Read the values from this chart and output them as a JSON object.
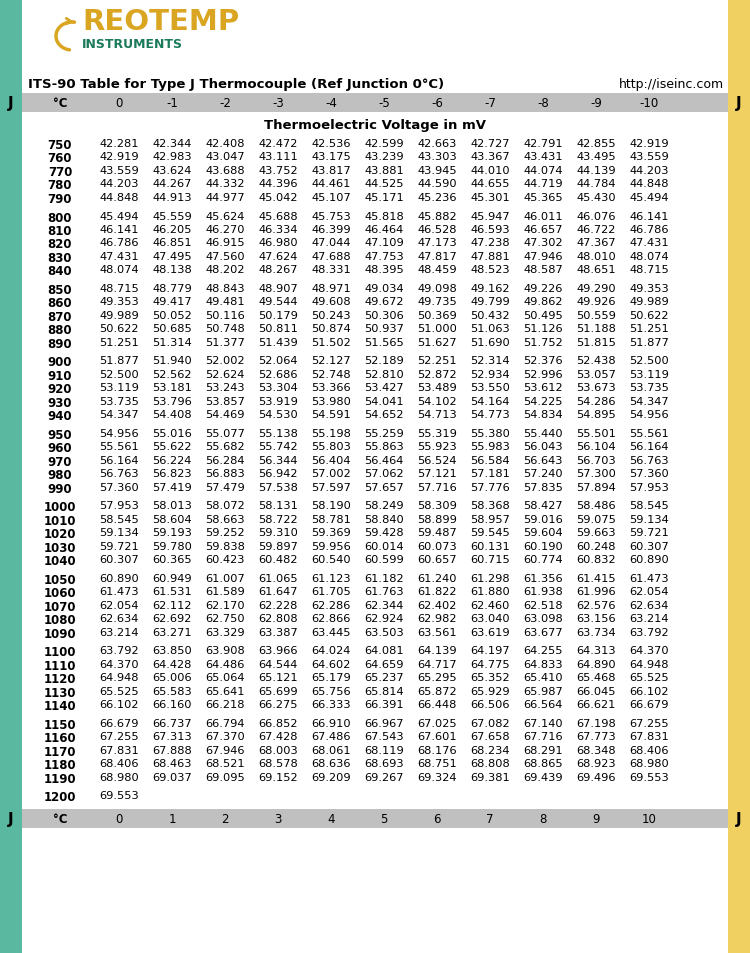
{
  "title_left": "ITS-90 Table for Type J Thermocouple (Ref Junction 0°C)",
  "title_right": "http://iseinc.com",
  "subtitle": "Thermoelectric Voltage in mV",
  "header_top": [
    "°C",
    "0",
    "-1",
    "-2",
    "-3",
    "-4",
    "-5",
    "-6",
    "-7",
    "-8",
    "-9",
    "-10"
  ],
  "header_bottom": [
    "°C",
    "0",
    "1",
    "2",
    "3",
    "4",
    "5",
    "6",
    "7",
    "8",
    "9",
    "10"
  ],
  "left_sidebar_color": "#5bb8a0",
  "right_sidebar_color": "#f0d060",
  "header_bg_color": "#c0c0c0",
  "logo_reotemp_color": "#DAA520",
  "logo_instruments_color": "#1a7a5a",
  "table_data": [
    [
      750,
      42.281,
      42.344,
      42.408,
      42.472,
      42.536,
      42.599,
      42.663,
      42.727,
      42.791,
      42.855,
      42.919
    ],
    [
      760,
      42.919,
      42.983,
      43.047,
      43.111,
      43.175,
      43.239,
      43.303,
      43.367,
      43.431,
      43.495,
      43.559
    ],
    [
      770,
      43.559,
      43.624,
      43.688,
      43.752,
      43.817,
      43.881,
      43.945,
      44.01,
      44.074,
      44.139,
      44.203
    ],
    [
      780,
      44.203,
      44.267,
      44.332,
      44.396,
      44.461,
      44.525,
      44.59,
      44.655,
      44.719,
      44.784,
      44.848
    ],
    [
      790,
      44.848,
      44.913,
      44.977,
      45.042,
      45.107,
      45.171,
      45.236,
      45.301,
      45.365,
      45.43,
      45.494
    ],
    [
      null,
      null,
      null,
      null,
      null,
      null,
      null,
      null,
      null,
      null,
      null,
      null
    ],
    [
      800,
      45.494,
      45.559,
      45.624,
      45.688,
      45.753,
      45.818,
      45.882,
      45.947,
      46.011,
      46.076,
      46.141
    ],
    [
      810,
      46.141,
      46.205,
      46.27,
      46.334,
      46.399,
      46.464,
      46.528,
      46.593,
      46.657,
      46.722,
      46.786
    ],
    [
      820,
      46.786,
      46.851,
      46.915,
      46.98,
      47.044,
      47.109,
      47.173,
      47.238,
      47.302,
      47.367,
      47.431
    ],
    [
      830,
      47.431,
      47.495,
      47.56,
      47.624,
      47.688,
      47.753,
      47.817,
      47.881,
      47.946,
      48.01,
      48.074
    ],
    [
      840,
      48.074,
      48.138,
      48.202,
      48.267,
      48.331,
      48.395,
      48.459,
      48.523,
      48.587,
      48.651,
      48.715
    ],
    [
      null,
      null,
      null,
      null,
      null,
      null,
      null,
      null,
      null,
      null,
      null,
      null
    ],
    [
      850,
      48.715,
      48.779,
      48.843,
      48.907,
      48.971,
      49.034,
      49.098,
      49.162,
      49.226,
      49.29,
      49.353
    ],
    [
      860,
      49.353,
      49.417,
      49.481,
      49.544,
      49.608,
      49.672,
      49.735,
      49.799,
      49.862,
      49.926,
      49.989
    ],
    [
      870,
      49.989,
      50.052,
      50.116,
      50.179,
      50.243,
      50.306,
      50.369,
      50.432,
      50.495,
      50.559,
      50.622
    ],
    [
      880,
      50.622,
      50.685,
      50.748,
      50.811,
      50.874,
      50.937,
      51.0,
      51.063,
      51.126,
      51.188,
      51.251
    ],
    [
      890,
      51.251,
      51.314,
      51.377,
      51.439,
      51.502,
      51.565,
      51.627,
      51.69,
      51.752,
      51.815,
      51.877
    ],
    [
      null,
      null,
      null,
      null,
      null,
      null,
      null,
      null,
      null,
      null,
      null,
      null
    ],
    [
      900,
      51.877,
      51.94,
      52.002,
      52.064,
      52.127,
      52.189,
      52.251,
      52.314,
      52.376,
      52.438,
      52.5
    ],
    [
      910,
      52.5,
      52.562,
      52.624,
      52.686,
      52.748,
      52.81,
      52.872,
      52.934,
      52.996,
      53.057,
      53.119
    ],
    [
      920,
      53.119,
      53.181,
      53.243,
      53.304,
      53.366,
      53.427,
      53.489,
      53.55,
      53.612,
      53.673,
      53.735
    ],
    [
      930,
      53.735,
      53.796,
      53.857,
      53.919,
      53.98,
      54.041,
      54.102,
      54.164,
      54.225,
      54.286,
      54.347
    ],
    [
      940,
      54.347,
      54.408,
      54.469,
      54.53,
      54.591,
      54.652,
      54.713,
      54.773,
      54.834,
      54.895,
      54.956
    ],
    [
      null,
      null,
      null,
      null,
      null,
      null,
      null,
      null,
      null,
      null,
      null,
      null
    ],
    [
      950,
      54.956,
      55.016,
      55.077,
      55.138,
      55.198,
      55.259,
      55.319,
      55.38,
      55.44,
      55.501,
      55.561
    ],
    [
      960,
      55.561,
      55.622,
      55.682,
      55.742,
      55.803,
      55.863,
      55.923,
      55.983,
      56.043,
      56.104,
      56.164
    ],
    [
      970,
      56.164,
      56.224,
      56.284,
      56.344,
      56.404,
      56.464,
      56.524,
      56.584,
      56.643,
      56.703,
      56.763
    ],
    [
      980,
      56.763,
      56.823,
      56.883,
      56.942,
      57.002,
      57.062,
      57.121,
      57.181,
      57.24,
      57.3,
      57.36
    ],
    [
      990,
      57.36,
      57.419,
      57.479,
      57.538,
      57.597,
      57.657,
      57.716,
      57.776,
      57.835,
      57.894,
      57.953
    ],
    [
      null,
      null,
      null,
      null,
      null,
      null,
      null,
      null,
      null,
      null,
      null,
      null
    ],
    [
      1000,
      57.953,
      58.013,
      58.072,
      58.131,
      58.19,
      58.249,
      58.309,
      58.368,
      58.427,
      58.486,
      58.545
    ],
    [
      1010,
      58.545,
      58.604,
      58.663,
      58.722,
      58.781,
      58.84,
      58.899,
      58.957,
      59.016,
      59.075,
      59.134
    ],
    [
      1020,
      59.134,
      59.193,
      59.252,
      59.31,
      59.369,
      59.428,
      59.487,
      59.545,
      59.604,
      59.663,
      59.721
    ],
    [
      1030,
      59.721,
      59.78,
      59.838,
      59.897,
      59.956,
      60.014,
      60.073,
      60.131,
      60.19,
      60.248,
      60.307
    ],
    [
      1040,
      60.307,
      60.365,
      60.423,
      60.482,
      60.54,
      60.599,
      60.657,
      60.715,
      60.774,
      60.832,
      60.89
    ],
    [
      null,
      null,
      null,
      null,
      null,
      null,
      null,
      null,
      null,
      null,
      null,
      null
    ],
    [
      1050,
      60.89,
      60.949,
      61.007,
      61.065,
      61.123,
      61.182,
      61.24,
      61.298,
      61.356,
      61.415,
      61.473
    ],
    [
      1060,
      61.473,
      61.531,
      61.589,
      61.647,
      61.705,
      61.763,
      61.822,
      61.88,
      61.938,
      61.996,
      62.054
    ],
    [
      1070,
      62.054,
      62.112,
      62.17,
      62.228,
      62.286,
      62.344,
      62.402,
      62.46,
      62.518,
      62.576,
      62.634
    ],
    [
      1080,
      62.634,
      62.692,
      62.75,
      62.808,
      62.866,
      62.924,
      62.982,
      63.04,
      63.098,
      63.156,
      63.214
    ],
    [
      1090,
      63.214,
      63.271,
      63.329,
      63.387,
      63.445,
      63.503,
      63.561,
      63.619,
      63.677,
      63.734,
      63.792
    ],
    [
      null,
      null,
      null,
      null,
      null,
      null,
      null,
      null,
      null,
      null,
      null,
      null
    ],
    [
      1100,
      63.792,
      63.85,
      63.908,
      63.966,
      64.024,
      64.081,
      64.139,
      64.197,
      64.255,
      64.313,
      64.37
    ],
    [
      1110,
      64.37,
      64.428,
      64.486,
      64.544,
      64.602,
      64.659,
      64.717,
      64.775,
      64.833,
      64.89,
      64.948
    ],
    [
      1120,
      64.948,
      65.006,
      65.064,
      65.121,
      65.179,
      65.237,
      65.295,
      65.352,
      65.41,
      65.468,
      65.525
    ],
    [
      1130,
      65.525,
      65.583,
      65.641,
      65.699,
      65.756,
      65.814,
      65.872,
      65.929,
      65.987,
      66.045,
      66.102
    ],
    [
      1140,
      66.102,
      66.16,
      66.218,
      66.275,
      66.333,
      66.391,
      66.448,
      66.506,
      66.564,
      66.621,
      66.679
    ],
    [
      null,
      null,
      null,
      null,
      null,
      null,
      null,
      null,
      null,
      null,
      null,
      null
    ],
    [
      1150,
      66.679,
      66.737,
      66.794,
      66.852,
      66.91,
      66.967,
      67.025,
      67.082,
      67.14,
      67.198,
      67.255
    ],
    [
      1160,
      67.255,
      67.313,
      67.37,
      67.428,
      67.486,
      67.543,
      67.601,
      67.658,
      67.716,
      67.773,
      67.831
    ],
    [
      1170,
      67.831,
      67.888,
      67.946,
      68.003,
      68.061,
      68.119,
      68.176,
      68.234,
      68.291,
      68.348,
      68.406
    ],
    [
      1180,
      68.406,
      68.463,
      68.521,
      68.578,
      68.636,
      68.693,
      68.751,
      68.808,
      68.865,
      68.923,
      68.98
    ],
    [
      1190,
      68.98,
      69.037,
      69.095,
      69.152,
      69.209,
      69.267,
      69.324,
      69.381,
      69.439,
      69.496,
      69.553
    ],
    [
      null,
      null,
      null,
      null,
      null,
      null,
      null,
      null,
      null,
      null,
      null,
      null
    ],
    [
      1200,
      69.553,
      null,
      null,
      null,
      null,
      null,
      null,
      null,
      null,
      null,
      null
    ]
  ]
}
